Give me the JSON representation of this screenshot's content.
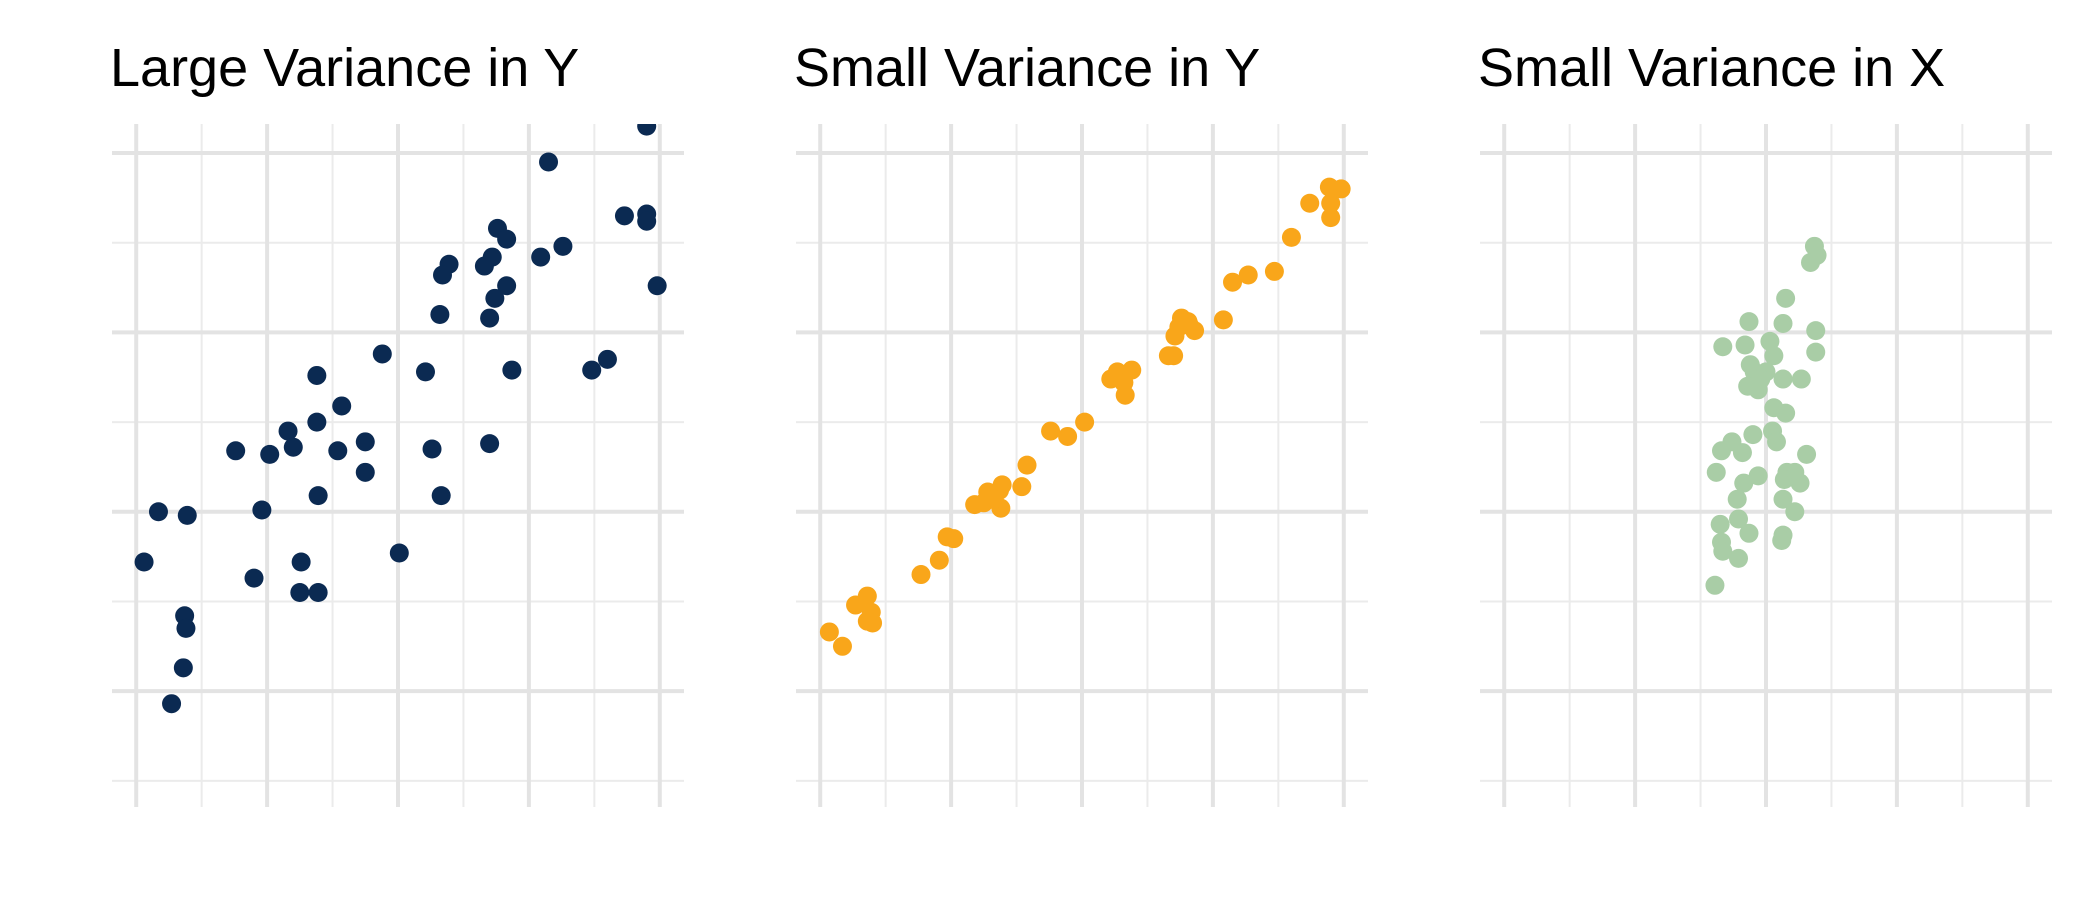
{
  "chart_data": [
    {
      "type": "scatter",
      "title": "Large Variance in Y",
      "color": "#0b2a52",
      "grid": true,
      "xlim": [
        -0.185,
        4.185
      ],
      "ylim": [
        -0.646,
        3.162
      ],
      "xticks": [
        0,
        1,
        2,
        3,
        4
      ],
      "minor_xticks": [
        0.5,
        1.5,
        2.5,
        3.5
      ],
      "yticks": [
        0,
        1,
        2,
        3
      ],
      "minor_yticks": [
        -0.5,
        0.5,
        1.5,
        2.5
      ],
      "x": [
        3.9,
        3.15,
        3.73,
        3.9,
        3.9,
        3.98,
        2.76,
        2.83,
        2.72,
        3.09,
        3.26,
        2.39,
        2.34,
        2.66,
        2.83,
        2.74,
        2.32,
        2.7,
        1.88,
        1.38,
        2.21,
        2.87,
        3.48,
        3.6,
        1.57,
        1.38,
        1.16,
        0.76,
        1.02,
        1.2,
        1.54,
        1.75,
        2.26,
        2.7,
        1.75,
        1.39,
        2.33,
        0.17,
        0.39,
        0.96,
        0.06,
        0.9,
        1.26,
        2.01,
        1.25,
        1.39,
        0.37,
        0.38,
        0.36,
        0.27
      ],
      "y": [
        3.15,
        2.95,
        2.65,
        2.66,
        2.62,
        2.26,
        2.58,
        2.52,
        2.42,
        2.42,
        2.48,
        2.38,
        2.32,
        2.37,
        2.26,
        2.19,
        2.1,
        2.08,
        1.88,
        1.76,
        1.78,
        1.79,
        1.79,
        1.85,
        1.59,
        1.5,
        1.45,
        1.34,
        1.32,
        1.36,
        1.34,
        1.39,
        1.35,
        1.38,
        1.22,
        1.09,
        1.09,
        1.0,
        0.98,
        1.01,
        0.72,
        0.63,
        0.72,
        0.77,
        0.55,
        0.55,
        0.42,
        0.35,
        0.13,
        -0.07
      ]
    },
    {
      "type": "scatter",
      "title": "Small Variance in Y",
      "color": "#f9a61a",
      "grid": true,
      "xlim": [
        -0.185,
        4.185
      ],
      "ylim": [
        -0.646,
        3.162
      ],
      "xticks": [
        0,
        1,
        2,
        3,
        4
      ],
      "minor_xticks": [
        0.5,
        1.5,
        2.5,
        3.5
      ],
      "yticks": [
        0,
        1,
        2,
        3
      ],
      "minor_yticks": [
        -0.5,
        0.5,
        1.5,
        2.5
      ],
      "x": [
        0.07,
        0.17,
        0.27,
        0.36,
        0.39,
        0.36,
        0.4,
        0.77,
        0.91,
        0.97,
        1.02,
        1.18,
        1.25,
        1.28,
        1.37,
        1.39,
        1.38,
        1.33,
        1.54,
        1.58,
        1.76,
        1.89,
        2.02,
        2.22,
        2.27,
        2.38,
        2.32,
        2.33,
        2.66,
        2.7,
        2.71,
        2.74,
        2.76,
        2.81,
        2.86,
        2.82,
        3.08,
        3.15,
        3.27,
        3.47,
        3.6,
        3.74,
        3.89,
        3.98,
        3.9,
        3.9
      ],
      "y": [
        0.33,
        0.25,
        0.48,
        0.53,
        0.44,
        0.39,
        0.38,
        0.65,
        0.73,
        0.86,
        0.85,
        1.04,
        1.05,
        1.11,
        1.12,
        1.15,
        1.02,
        1.07,
        1.14,
        1.26,
        1.45,
        1.42,
        1.5,
        1.74,
        1.78,
        1.79,
        1.72,
        1.65,
        1.87,
        1.87,
        1.98,
        2.03,
        2.08,
        2.06,
        2.01,
        2.04,
        2.07,
        2.28,
        2.32,
        2.34,
        2.53,
        2.72,
        2.81,
        2.8,
        2.72,
        2.64
      ]
    },
    {
      "type": "scatter",
      "title": "Small Variance in X",
      "color": "#a9cda6",
      "grid": true,
      "xlim": [
        -0.185,
        4.185
      ],
      "ylim": [
        -0.646,
        3.162
      ],
      "xticks": [
        0,
        1,
        2,
        3,
        4
      ],
      "minor_xticks": [
        0.5,
        1.5,
        2.5,
        3.5
      ],
      "yticks": [
        0,
        1,
        2,
        3
      ],
      "minor_yticks": [
        -0.5,
        0.5,
        1.5,
        2.5
      ],
      "x": [
        2.37,
        2.39,
        2.34,
        2.15,
        1.87,
        2.13,
        2.38,
        1.67,
        1.84,
        2.03,
        2.38,
        2.06,
        1.88,
        1.91,
        2.0,
        1.96,
        1.86,
        2.13,
        2.27,
        1.94,
        2.06,
        2.15,
        1.74,
        1.9,
        2.05,
        2.08,
        1.66,
        1.82,
        2.31,
        1.62,
        1.94,
        2.16,
        2.22,
        1.83,
        2.26,
        2.14,
        1.78,
        2.13,
        2.22,
        1.79,
        1.65,
        1.87,
        2.13,
        2.12,
        1.66,
        1.67,
        1.79,
        1.61
      ],
      "y": [
        2.48,
        2.43,
        2.39,
        2.19,
        2.06,
        2.05,
        2.01,
        1.92,
        1.93,
        1.95,
        1.89,
        1.87,
        1.82,
        1.78,
        1.78,
        1.74,
        1.7,
        1.74,
        1.74,
        1.68,
        1.58,
        1.55,
        1.39,
        1.43,
        1.45,
        1.39,
        1.34,
        1.33,
        1.32,
        1.22,
        1.2,
        1.22,
        1.22,
        1.16,
        1.16,
        1.18,
        1.07,
        1.07,
        1.0,
        0.96,
        0.93,
        0.88,
        0.87,
        0.84,
        0.83,
        0.78,
        0.74,
        0.59
      ]
    }
  ]
}
